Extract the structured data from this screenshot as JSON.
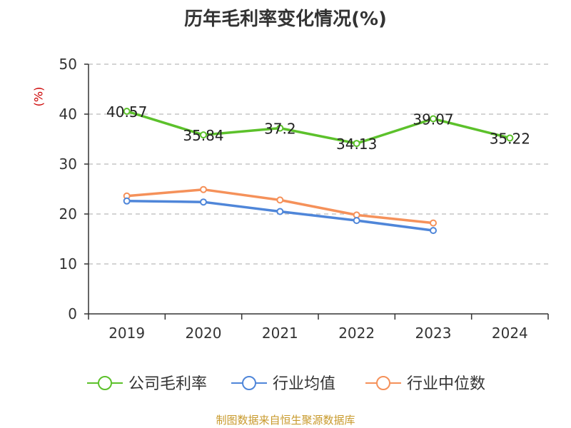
{
  "title": "历年毛利率变化情况(%)",
  "source": "制图数据来自恒生聚源数据库",
  "chart_data": {
    "type": "line",
    "title": "历年毛利率变化情况(%)",
    "ylabel": "(%)",
    "xlabel": "",
    "categories": [
      "2019",
      "2020",
      "2021",
      "2022",
      "2023",
      "2024"
    ],
    "ylim": [
      0,
      50
    ],
    "yticks": [
      0,
      10,
      20,
      30,
      40,
      50
    ],
    "grid": true,
    "legend_position": "bottom",
    "series": [
      {
        "name": "公司毛利率",
        "color": "#5cc12b",
        "values": [
          40.57,
          35.84,
          37.2,
          34.13,
          39.07,
          35.22
        ],
        "labels": [
          "40.57",
          "35.84",
          "37.2",
          "34.13",
          "39.07",
          "35.22"
        ]
      },
      {
        "name": "行业均值",
        "color": "#4f86d9",
        "values": [
          22.6,
          22.4,
          20.5,
          18.7,
          16.7,
          null
        ]
      },
      {
        "name": "行业中位数",
        "color": "#f5915a",
        "values": [
          23.6,
          24.9,
          22.8,
          19.8,
          18.2,
          null
        ]
      }
    ]
  }
}
